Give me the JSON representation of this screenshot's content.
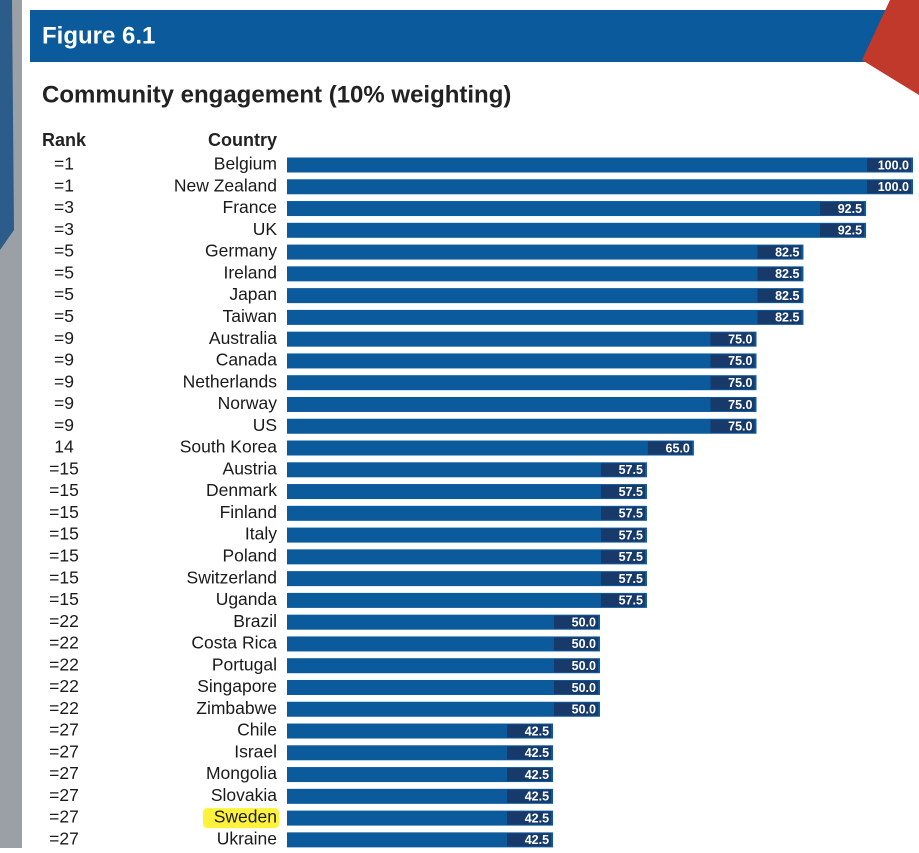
{
  "chart_data": {
    "type": "bar",
    "orientation": "horizontal",
    "figure_label": "Figure 6.1",
    "title": "Community engagement (10% weighting)",
    "rank_header": "Rank",
    "category_header": "Country",
    "ranks": [
      "=1",
      "=1",
      "=3",
      "=3",
      "=5",
      "=5",
      "=5",
      "=5",
      "=9",
      "=9",
      "=9",
      "=9",
      "=9",
      "14",
      "=15",
      "=15",
      "=15",
      "=15",
      "=15",
      "=15",
      "=15",
      "=22",
      "=22",
      "=22",
      "=22",
      "=22",
      "=27",
      "=27",
      "=27",
      "=27",
      "=27",
      "=27"
    ],
    "categories": [
      "Belgium",
      "New Zealand",
      "France",
      "UK",
      "Germany",
      "Ireland",
      "Japan",
      "Taiwan",
      "Australia",
      "Canada",
      "Netherlands",
      "Norway",
      "US",
      "South Korea",
      "Austria",
      "Denmark",
      "Finland",
      "Italy",
      "Poland",
      "Switzerland",
      "Uganda",
      "Brazil",
      "Costa Rica",
      "Portugal",
      "Singapore",
      "Zimbabwe",
      "Chile",
      "Israel",
      "Mongolia",
      "Slovakia",
      "Sweden",
      "Ukraine"
    ],
    "values": [
      100,
      100,
      92.5,
      92.5,
      82.5,
      82.5,
      82.5,
      82.5,
      75,
      75,
      75,
      75,
      75,
      65,
      57.5,
      57.5,
      57.5,
      57.5,
      57.5,
      57.5,
      57.5,
      50,
      50,
      50,
      50,
      50,
      42.5,
      42.5,
      42.5,
      42.5,
      42.5,
      42.5
    ],
    "value_labels": [
      "100.0",
      "100.0",
      "92.5",
      "92.5",
      "82.5",
      "82.5",
      "82.5",
      "82.5",
      "75.0",
      "75.0",
      "75.0",
      "75.0",
      "75.0",
      "65.0",
      "57.5",
      "57.5",
      "57.5",
      "57.5",
      "57.5",
      "57.5",
      "57.5",
      "50.0",
      "50.0",
      "50.0",
      "50.0",
      "50.0",
      "42.5",
      "42.5",
      "42.5",
      "42.5",
      "42.5",
      "42.5"
    ],
    "color": "#0b5a9c",
    "label_box_color": "#173a6a",
    "highlight": {
      "index": 30,
      "color": "#fff23a"
    },
    "xlim": [
      0,
      100
    ]
  }
}
